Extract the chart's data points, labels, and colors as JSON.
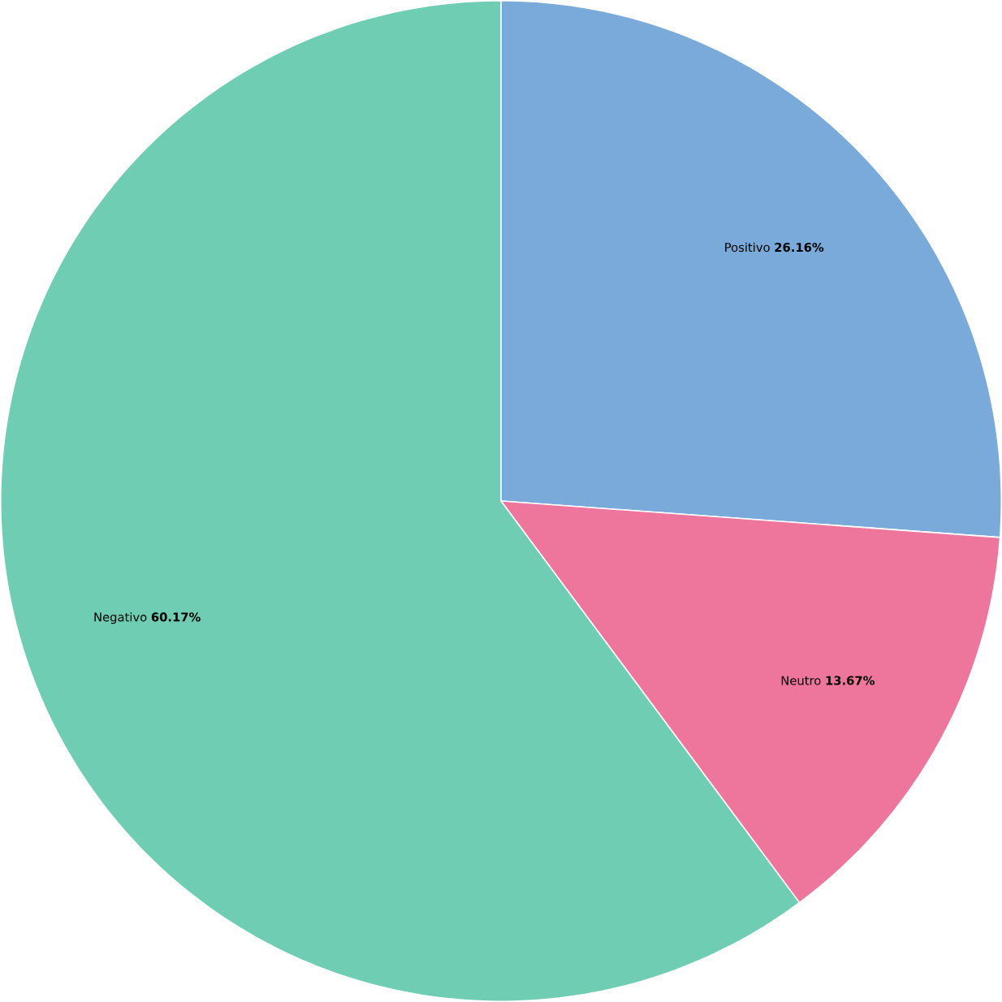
{
  "chart_data": {
    "type": "pie",
    "categories": [
      "Positivo",
      "Neutro",
      "Negativo"
    ],
    "values": [
      26.16,
      13.67,
      60.17
    ],
    "colors": [
      "#7aaad9",
      "#ee769c",
      "#6fcdb3"
    ],
    "value_labels": [
      "26.16%",
      "13.67%",
      "60.17%"
    ]
  }
}
